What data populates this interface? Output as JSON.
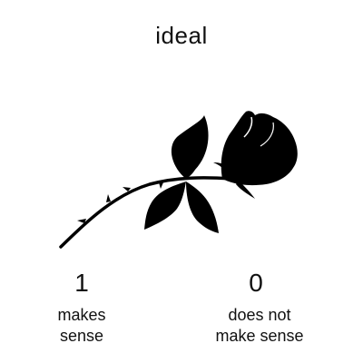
{
  "title": "ideal",
  "options": [
    {
      "score": "1",
      "label_line1": "makes",
      "label_line2": "sense"
    },
    {
      "score": "0",
      "label_line1": "does not",
      "label_line2": "make sense"
    }
  ],
  "image": {
    "subject": "rose-silhouette-icon",
    "color": "#000000"
  }
}
